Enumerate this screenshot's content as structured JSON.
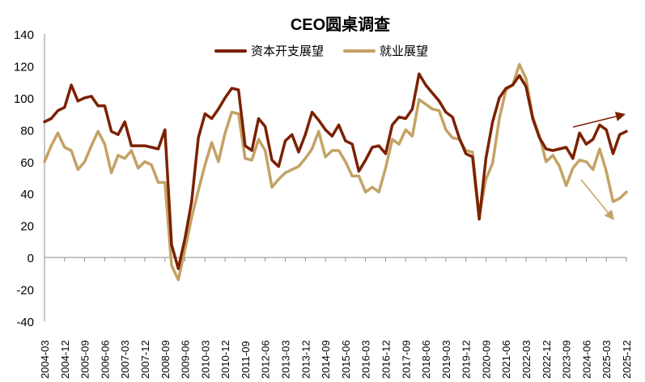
{
  "chart_data": {
    "type": "line",
    "title": "CEO圆桌调查",
    "xlabel": "",
    "ylabel": "",
    "ylim": [
      -40,
      140
    ],
    "yticks": [
      140,
      120,
      100,
      80,
      60,
      40,
      20,
      0,
      -20,
      -40
    ],
    "grid": false,
    "legend_position": "top",
    "x_tick_labels": [
      "2004-03",
      "2004-12",
      "2005-09",
      "2006-06",
      "2007-03",
      "2007-12",
      "2008-09",
      "2009-06",
      "2010-03",
      "2010-12",
      "2011-09",
      "2012-06",
      "2013-03",
      "2013-12",
      "2014-09",
      "2015-06",
      "2016-03",
      "2016-12",
      "2017-09",
      "2018-06",
      "2019-03",
      "2019-12",
      "2020-09",
      "2021-06",
      "2022-03",
      "2022-12",
      "2023-09",
      "2024-06",
      "2025-03",
      "2025-12"
    ],
    "x": [
      "2004-03",
      "2004-06",
      "2004-09",
      "2004-12",
      "2005-03",
      "2005-06",
      "2005-09",
      "2005-12",
      "2006-03",
      "2006-06",
      "2006-09",
      "2006-12",
      "2007-03",
      "2007-06",
      "2007-09",
      "2007-12",
      "2008-03",
      "2008-06",
      "2008-09",
      "2008-12",
      "2009-03",
      "2009-06",
      "2009-09",
      "2009-12",
      "2010-03",
      "2010-06",
      "2010-09",
      "2010-12",
      "2011-03",
      "2011-06",
      "2011-09",
      "2011-12",
      "2012-03",
      "2012-06",
      "2012-09",
      "2012-12",
      "2013-03",
      "2013-06",
      "2013-09",
      "2013-12",
      "2014-03",
      "2014-06",
      "2014-09",
      "2014-12",
      "2015-03",
      "2015-06",
      "2015-09",
      "2015-12",
      "2016-03",
      "2016-06",
      "2016-09",
      "2016-12",
      "2017-03",
      "2017-06",
      "2017-09",
      "2017-12",
      "2018-03",
      "2018-06",
      "2018-09",
      "2018-12",
      "2019-03",
      "2019-06",
      "2019-09",
      "2019-12",
      "2020-03",
      "2020-06",
      "2020-09",
      "2020-12",
      "2021-03",
      "2021-06",
      "2021-09",
      "2021-12",
      "2022-03",
      "2022-06",
      "2022-09",
      "2022-12",
      "2023-03",
      "2023-06",
      "2023-09",
      "2023-12",
      "2024-03",
      "2024-06",
      "2024-09",
      "2024-12",
      "2025-03",
      "2025-06",
      "2025-09",
      "2025-12"
    ],
    "series": [
      {
        "name": "资本开支展望",
        "color": "#7B2100",
        "values": [
          85,
          87,
          92,
          94,
          108,
          98,
          100,
          101,
          95,
          95,
          79,
          77,
          85,
          70,
          70,
          70,
          69,
          68,
          80,
          8,
          -7,
          12,
          35,
          75,
          90,
          87,
          93,
          100,
          106,
          105,
          70,
          67,
          87,
          82,
          61,
          57,
          73,
          77,
          66,
          77,
          91,
          86,
          80,
          76,
          83,
          73,
          71,
          54,
          61,
          69,
          70,
          65,
          83,
          88,
          87,
          93,
          115,
          108,
          103,
          98,
          91,
          88,
          75,
          65,
          63,
          24,
          62,
          85,
          100,
          106,
          108,
          114,
          107,
          87,
          75,
          68,
          67,
          68,
          69,
          62,
          78,
          71,
          74,
          83,
          80,
          65,
          77,
          79
        ]
      },
      {
        "name": "就业展望",
        "color": "#C4A265",
        "values": [
          60,
          70,
          78,
          69,
          67,
          55,
          60,
          70,
          79,
          71,
          53,
          64,
          62,
          67,
          56,
          60,
          58,
          47,
          47,
          -5,
          -14,
          5,
          25,
          42,
          58,
          72,
          60,
          78,
          91,
          90,
          62,
          61,
          74,
          67,
          44,
          49,
          53,
          55,
          57,
          62,
          68,
          79,
          63,
          67,
          67,
          60,
          51,
          51,
          41,
          44,
          41,
          56,
          74,
          71,
          80,
          76,
          99,
          96,
          93,
          92,
          80,
          75,
          74,
          67,
          66,
          26,
          49,
          59,
          87,
          105,
          108,
          121,
          112,
          88,
          76,
          60,
          64,
          57,
          45,
          56,
          61,
          60,
          55,
          68,
          54,
          35,
          37,
          41
        ]
      }
    ],
    "annotations": [
      {
        "type": "arrow",
        "color": "#7B2100",
        "direction": "up",
        "from": [
          708,
          157
        ],
        "to": [
          773,
          141
        ]
      },
      {
        "type": "arrow",
        "color": "#C4A265",
        "direction": "down",
        "from": [
          718,
          222
        ],
        "to": [
          759,
          272
        ]
      }
    ]
  },
  "legend": {
    "items": [
      {
        "label": "资本开支展望",
        "color": "#7B2100"
      },
      {
        "label": "就业展望",
        "color": "#C4A265"
      }
    ]
  }
}
